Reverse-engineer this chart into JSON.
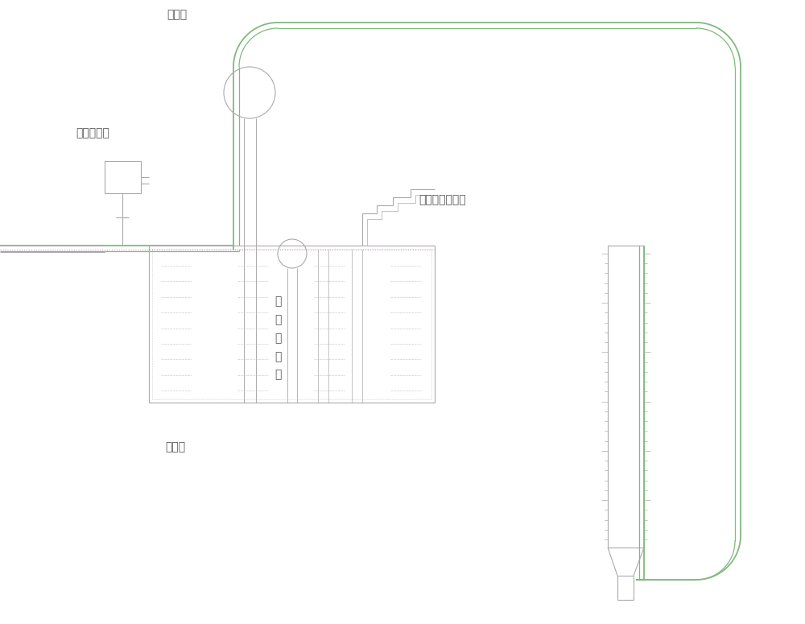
{
  "bg_color": "#ffffff",
  "gc": "#7fba7f",
  "pc": "#c8a0c8",
  "gray": "#aaaaaa",
  "lgray": "#cccccc",
  "tc": "#555555",
  "labels": {
    "mud_pump": "泥浆泵",
    "flowmeter": "瞬时流量计",
    "level_gauge": "泥\n浆\n液\n位\n计",
    "pressure_sensor": "泥浆压力传感器",
    "mud_pit": "泥浆池"
  }
}
